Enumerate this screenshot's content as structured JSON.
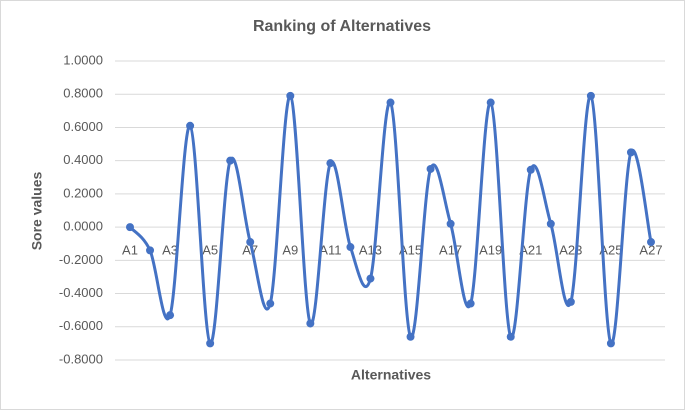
{
  "chart_data": {
    "type": "line",
    "title": "Ranking of Alternatives",
    "x_label": "Alternatives",
    "y_label": "Sore values",
    "categories": [
      "A1",
      null,
      "A3",
      null,
      "A5",
      null,
      "A7",
      null,
      "A9",
      null,
      "A11",
      null,
      "A13",
      null,
      "A15",
      null,
      "A17",
      null,
      "A19",
      null,
      "A21",
      null,
      "A23",
      null,
      "A25",
      null,
      "A27"
    ],
    "series": [
      {
        "name": "Sore values",
        "color": "#4472c4",
        "values": [
          0.0,
          -0.14,
          -0.53,
          0.61,
          -0.7,
          0.4,
          -0.09,
          -0.46,
          0.79,
          -0.58,
          0.385,
          -0.12,
          -0.31,
          0.75,
          -0.66,
          0.35,
          0.02,
          -0.46,
          0.75,
          -0.66,
          0.345,
          0.02,
          -0.45,
          0.79,
          -0.7,
          0.45,
          -0.09
        ]
      }
    ],
    "ylim": [
      -0.8,
      1.0
    ],
    "yticks": [
      {
        "value": -0.8,
        "label": "-0.8000"
      },
      {
        "value": -0.6,
        "label": "-0.6000"
      },
      {
        "value": -0.4,
        "label": "-0.4000"
      },
      {
        "value": -0.2,
        "label": "-0.2000"
      },
      {
        "value": 0,
        "label": "0.0000"
      },
      {
        "value": 0.2,
        "label": "0.2000"
      },
      {
        "value": 0.4,
        "label": "0.4000"
      },
      {
        "value": 0.6,
        "label": "0.6000"
      },
      {
        "value": 0.8,
        "label": "0.8000"
      },
      {
        "value": 1.0,
        "label": "1.0000"
      }
    ],
    "grid": true,
    "smooth": true
  }
}
